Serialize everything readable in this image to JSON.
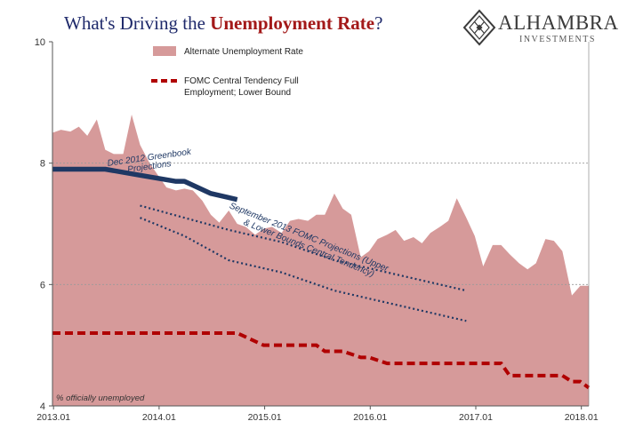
{
  "header": {
    "title_prefix": "What's Driving the ",
    "title_emphasis": "Unemployment Rate",
    "title_suffix": "?"
  },
  "logo": {
    "name": "ALHAMBRA",
    "subtitle": "INVESTMENTS",
    "icon": "diamond-lattice-icon"
  },
  "chart_data": {
    "type": "area",
    "title": "What's Driving the Unemployment Rate?",
    "ylim": [
      4,
      10
    ],
    "y_ticks": [
      4,
      6,
      8,
      10
    ],
    "xlim": [
      2013.0,
      2018.08
    ],
    "x_ticks": [
      "2013.01",
      "2014.01",
      "2015.01",
      "2016.01",
      "2017.01",
      "2018.01"
    ],
    "grid": "horizontal dashed at 6 and 8",
    "legend_placement": "top-left",
    "axis_note": "% officially unemployed",
    "colors": {
      "area": "#d69a9a",
      "greenbook": "#1f3864",
      "fomc_upper_lower": "#1f3864",
      "full_employment": "#b00000"
    },
    "series": [
      {
        "name": "Alternate Unemployment Rate",
        "style": "area",
        "x": [
          2013.0,
          2013.08,
          2013.17,
          2013.25,
          2013.33,
          2013.42,
          2013.5,
          2013.58,
          2013.67,
          2013.75,
          2013.83,
          2013.92,
          2014.0,
          2014.08,
          2014.17,
          2014.25,
          2014.33,
          2014.42,
          2014.5,
          2014.58,
          2014.67,
          2014.75,
          2014.83,
          2014.92,
          2015.0,
          2015.08,
          2015.17,
          2015.25,
          2015.33,
          2015.42,
          2015.5,
          2015.58,
          2015.67,
          2015.75,
          2015.83,
          2015.92,
          2016.0,
          2016.08,
          2016.17,
          2016.25,
          2016.33,
          2016.42,
          2016.5,
          2016.58,
          2016.67,
          2016.75,
          2016.83,
          2016.92,
          2017.0,
          2017.08,
          2017.17,
          2017.25,
          2017.33,
          2017.42,
          2017.5,
          2017.58,
          2017.67,
          2017.75,
          2017.83,
          2017.92,
          2018.0,
          2018.08
        ],
        "values": [
          8.5,
          8.55,
          8.52,
          8.6,
          8.45,
          8.72,
          8.22,
          8.15,
          8.15,
          8.8,
          8.3,
          8.0,
          7.8,
          7.6,
          7.55,
          7.58,
          7.55,
          7.38,
          7.15,
          7.02,
          7.22,
          7.0,
          6.95,
          6.82,
          6.92,
          6.95,
          6.85,
          7.05,
          7.08,
          7.05,
          7.15,
          7.15,
          7.5,
          7.25,
          7.15,
          6.45,
          6.55,
          6.75,
          6.82,
          6.9,
          6.72,
          6.78,
          6.68,
          6.85,
          6.95,
          7.05,
          7.42,
          7.1,
          6.8,
          6.3,
          6.65,
          6.65,
          6.5,
          6.35,
          6.25,
          6.35,
          6.75,
          6.72,
          6.55,
          5.82,
          5.98,
          5.98
        ]
      },
      {
        "name": "FOMC Central Tendency Full Employment; Lower Bound",
        "style": "dashed",
        "x": [
          2013.0,
          2014.75,
          2015.0,
          2015.5,
          2015.58,
          2015.75,
          2015.92,
          2016.0,
          2016.17,
          2016.92,
          2017.08,
          2017.25,
          2017.33,
          2017.42,
          2017.83,
          2017.92,
          2018.0,
          2018.08
        ],
        "values": [
          5.2,
          5.2,
          5.0,
          5.0,
          4.9,
          4.9,
          4.8,
          4.8,
          4.7,
          4.7,
          4.7,
          4.7,
          4.5,
          4.5,
          4.5,
          4.4,
          4.4,
          4.3
        ]
      },
      {
        "label": "Dec 2012 Greenbook Projections",
        "style": "thick-line",
        "x": [
          2013.0,
          2013.5,
          2013.83,
          2014.17,
          2014.25,
          2014.5,
          2014.75
        ],
        "values": [
          7.9,
          7.9,
          7.8,
          7.7,
          7.7,
          7.5,
          7.4
        ]
      },
      {
        "style": "dotted",
        "x": [
          2013.83,
          2014.25,
          2014.67,
          2015.17,
          2015.67,
          2016.17,
          2016.67,
          2016.92
        ],
        "values": [
          7.3,
          7.1,
          6.9,
          6.7,
          6.4,
          6.2,
          6.0,
          5.9
        ]
      },
      {
        "style": "dotted",
        "x": [
          2013.83,
          2014.25,
          2014.67,
          2015.17,
          2015.67,
          2016.17,
          2016.67,
          2016.92
        ],
        "values": [
          7.1,
          6.8,
          6.4,
          6.2,
          5.9,
          5.7,
          5.5,
          5.4
        ]
      }
    ],
    "annotations": [
      {
        "text": "Dec 2012 Greenbook",
        "x": 2013.92,
        "y": 8.05
      },
      {
        "text": "Projections",
        "x": 2013.92,
        "y": 7.9
      },
      {
        "text": "September 2013 FOMC Projections (Upper",
        "x": 2015.42,
        "y": 6.74
      },
      {
        "text": "& Lower Bounds Central Tendency)",
        "x": 2015.42,
        "y": 6.56
      }
    ]
  }
}
